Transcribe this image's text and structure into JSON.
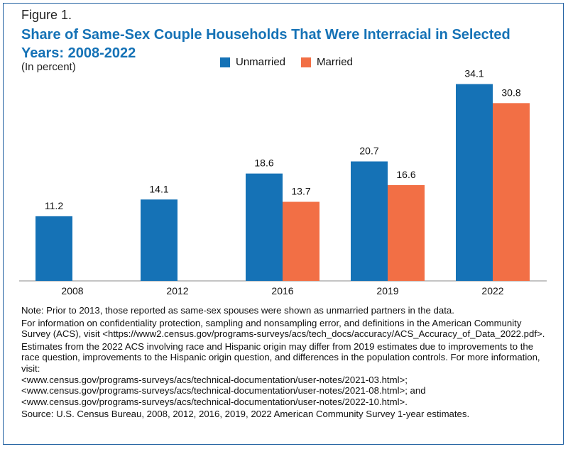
{
  "figure_label": "Figure 1.",
  "title": "Share of Same-Sex Couple Households That Were Interracial in Selected Years: 2008-2022",
  "subtitle": "(In percent)",
  "colors": {
    "unmarried": "#1572b6",
    "married": "#f26f45",
    "title": "#1572b6",
    "border": "#1f5fa0"
  },
  "chart_data": {
    "type": "bar",
    "categories": [
      "2008",
      "2012",
      "2016",
      "2019",
      "2022"
    ],
    "series": [
      {
        "name": "Unmarried",
        "values": [
          11.2,
          14.1,
          18.6,
          20.7,
          34.1
        ],
        "labels": [
          "11.2",
          "14.1",
          "18.6",
          "20.7",
          "34.1"
        ]
      },
      {
        "name": "Married",
        "values": [
          null,
          null,
          13.7,
          16.6,
          30.8
        ],
        "labels": [
          "",
          "",
          "13.7",
          "16.6",
          "30.8"
        ]
      }
    ],
    "ylim": [
      0,
      36
    ],
    "legend_position": "top-center",
    "grid": false
  },
  "notes": [
    "Note: Prior to 2013, those reported as same-sex spouses were shown as unmarried partners in the data.",
    "For information on confidentiality protection, sampling and nonsampling error, and definitions in the American Community Survey (ACS), visit <https://www2.census.gov/programs-surveys/acs/tech_docs/accuracy/ACS_Accuracy_of_Data_2022.pdf>.",
    "Estimates from the 2022 ACS involving race and Hispanic origin may differ from 2019 estimates due to improvements to the race question, improvements to the Hispanic origin question, and differences in the population controls. For more information, visit:",
    "<www.census.gov/programs-surveys/acs/technical-documentation/user-notes/2021-03.html>;",
    "<www.census.gov/programs-surveys/acs/technical-documentation/user-notes/2021-08.html>; and",
    "<www.census.gov/programs-surveys/acs/technical-documentation/user-notes/2022-10.html>.",
    "Source: U.S. Census Bureau, 2008, 2012, 2016, 2019, 2022 American Community Survey 1-year estimates."
  ]
}
